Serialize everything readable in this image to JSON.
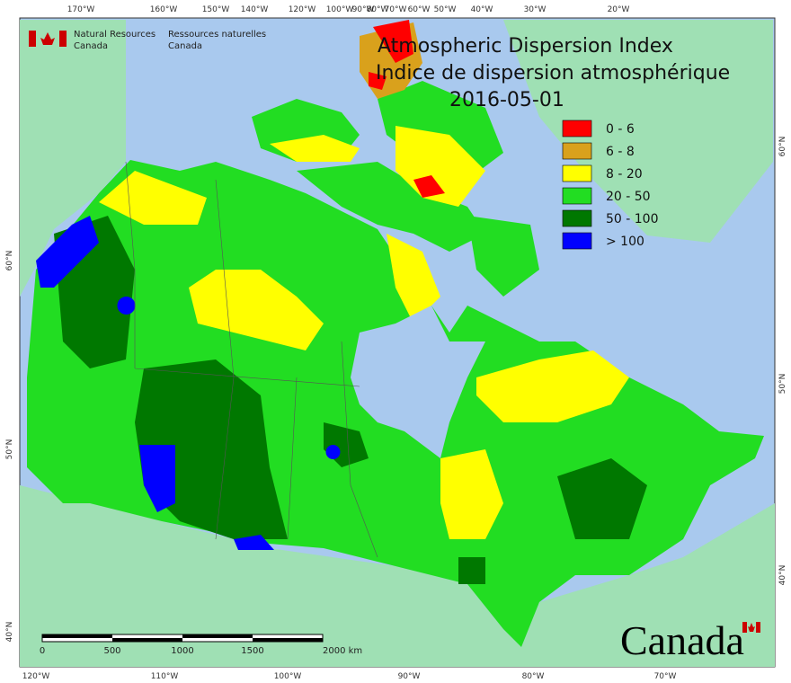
{
  "header": {
    "agency_en": [
      "Natural Resources",
      "Canada"
    ],
    "agency_fr": [
      "Ressources naturelles",
      "Canada"
    ]
  },
  "title": {
    "line1": "Atmospheric Dispersion Index",
    "line2": "Indice de dispersion atmosphérique",
    "date": "2016-05-01"
  },
  "legend": {
    "items": [
      {
        "label": "0 - 6",
        "color": "#ff0000"
      },
      {
        "label": "6 - 8",
        "color": "#d9a11c"
      },
      {
        "label": "8 - 20",
        "color": "#ffff00"
      },
      {
        "label": "20 - 50",
        "color": "#22dd22"
      },
      {
        "label": "50 - 100",
        "color": "#007800"
      },
      {
        "label": "> 100",
        "color": "#0000ff"
      }
    ]
  },
  "graticule": {
    "top": [
      "170°W",
      "160°W",
      "150°W",
      "140°W",
      "120°W",
      "100°W",
      "90°W",
      "80°W",
      "70°W",
      "60°W",
      "50°W",
      "40°W",
      "30°W",
      "20°W"
    ],
    "bottom": [
      "120°W",
      "110°W",
      "100°W",
      "90°W",
      "80°W",
      "70°W"
    ],
    "left": [
      "60°N",
      "50°N",
      "40°N"
    ],
    "right": [
      "60°N",
      "50°N",
      "40°N"
    ]
  },
  "scale_bar": {
    "labels": [
      "0",
      "500",
      "1000",
      "1500",
      "2000 km"
    ]
  },
  "wordmark": "Canada"
}
